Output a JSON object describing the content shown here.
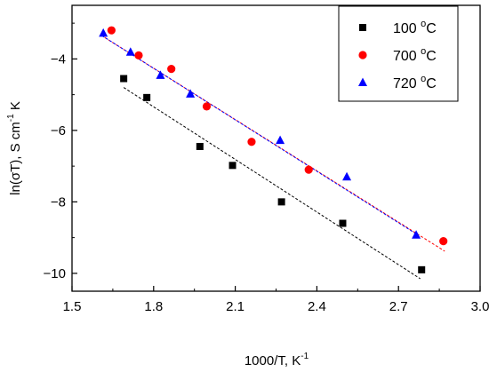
{
  "chart_data": {
    "type": "scatter",
    "title": "",
    "xlabel": {
      "main": "1000/T, K",
      "sup": "-1"
    },
    "ylabel": {
      "p1": "ln(σT), S cm",
      "sup": "-1",
      "p2": " K"
    },
    "xlim": [
      1.5,
      3.0
    ],
    "ylim": [
      -10.5,
      -2.5
    ],
    "xticks": [
      "1.5",
      "1.8",
      "2.1",
      "2.4",
      "2.7",
      "3.0"
    ],
    "yticks": [
      "-4",
      "-6",
      "-8",
      "-10"
    ],
    "xtick_values": [
      1.5,
      1.8,
      2.1,
      2.4,
      2.7,
      3.0
    ],
    "ytick_values": [
      -4,
      -6,
      -8,
      -10
    ],
    "grid": false,
    "legend_position": "top-right",
    "series": [
      {
        "name": {
          "num": "100",
          "unit": "C"
        },
        "marker": "square",
        "color": "#000000",
        "x": [
          1.69,
          1.775,
          1.97,
          2.09,
          2.27,
          2.495,
          2.785
        ],
        "y": [
          -4.55,
          -5.08,
          -6.45,
          -6.98,
          -8.0,
          -8.6,
          -9.9
        ],
        "fit": {
          "x": [
            1.69,
            2.78
          ],
          "y": [
            -4.8,
            -10.15
          ]
        }
      },
      {
        "name": {
          "num": "700",
          "unit": "C"
        },
        "marker": "circle",
        "color": "#ff0000",
        "x": [
          1.645,
          1.745,
          1.865,
          1.995,
          2.16,
          2.37,
          2.865
        ],
        "y": [
          -3.2,
          -3.9,
          -4.28,
          -5.33,
          -6.32,
          -7.1,
          -9.1
        ],
        "fit": {
          "x": [
            1.62,
            2.87
          ],
          "y": [
            -3.4,
            -9.38
          ]
        }
      },
      {
        "name": {
          "num": "720",
          "unit": "C"
        },
        "marker": "triangle",
        "color": "#0000ff",
        "x": [
          1.615,
          1.715,
          1.825,
          1.935,
          2.265,
          2.51,
          2.765
        ],
        "y": [
          -3.28,
          -3.81,
          -4.46,
          -4.98,
          -6.28,
          -7.3,
          -8.93
        ],
        "fit": {
          "x": [
            1.61,
            2.77
          ],
          "y": [
            -3.35,
            -8.92
          ]
        }
      }
    ]
  }
}
